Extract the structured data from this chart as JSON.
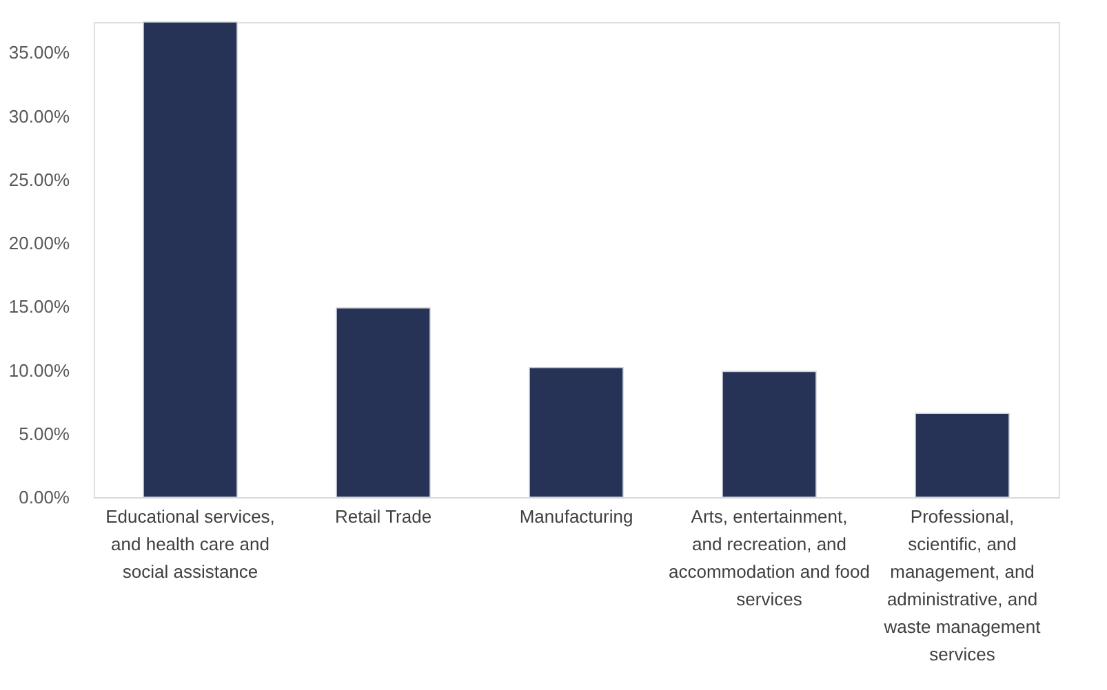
{
  "chart_data": {
    "type": "bar",
    "categories": [
      "Educational services, and health care and social assistance",
      "Retail Trade",
      "Manufacturing",
      "Arts, entertainment, and recreation, and accommodation and food services",
      "Professional, scientific, and management, and administrative, and waste management services"
    ],
    "values": [
      37.4,
      14.9,
      10.2,
      9.9,
      6.6
    ],
    "color": "#263356",
    "ylim": [
      0,
      37.4
    ],
    "yticks": [
      {
        "value": 0,
        "label": "0.00%"
      },
      {
        "value": 5,
        "label": "5.00%"
      },
      {
        "value": 10,
        "label": "10.00%"
      },
      {
        "value": 15,
        "label": "15.00%"
      },
      {
        "value": 20,
        "label": "20.00%"
      },
      {
        "value": 25,
        "label": "25.00%"
      },
      {
        "value": 30,
        "label": "30.00%"
      },
      {
        "value": 35,
        "label": "35.00%"
      }
    ],
    "grid": false
  }
}
